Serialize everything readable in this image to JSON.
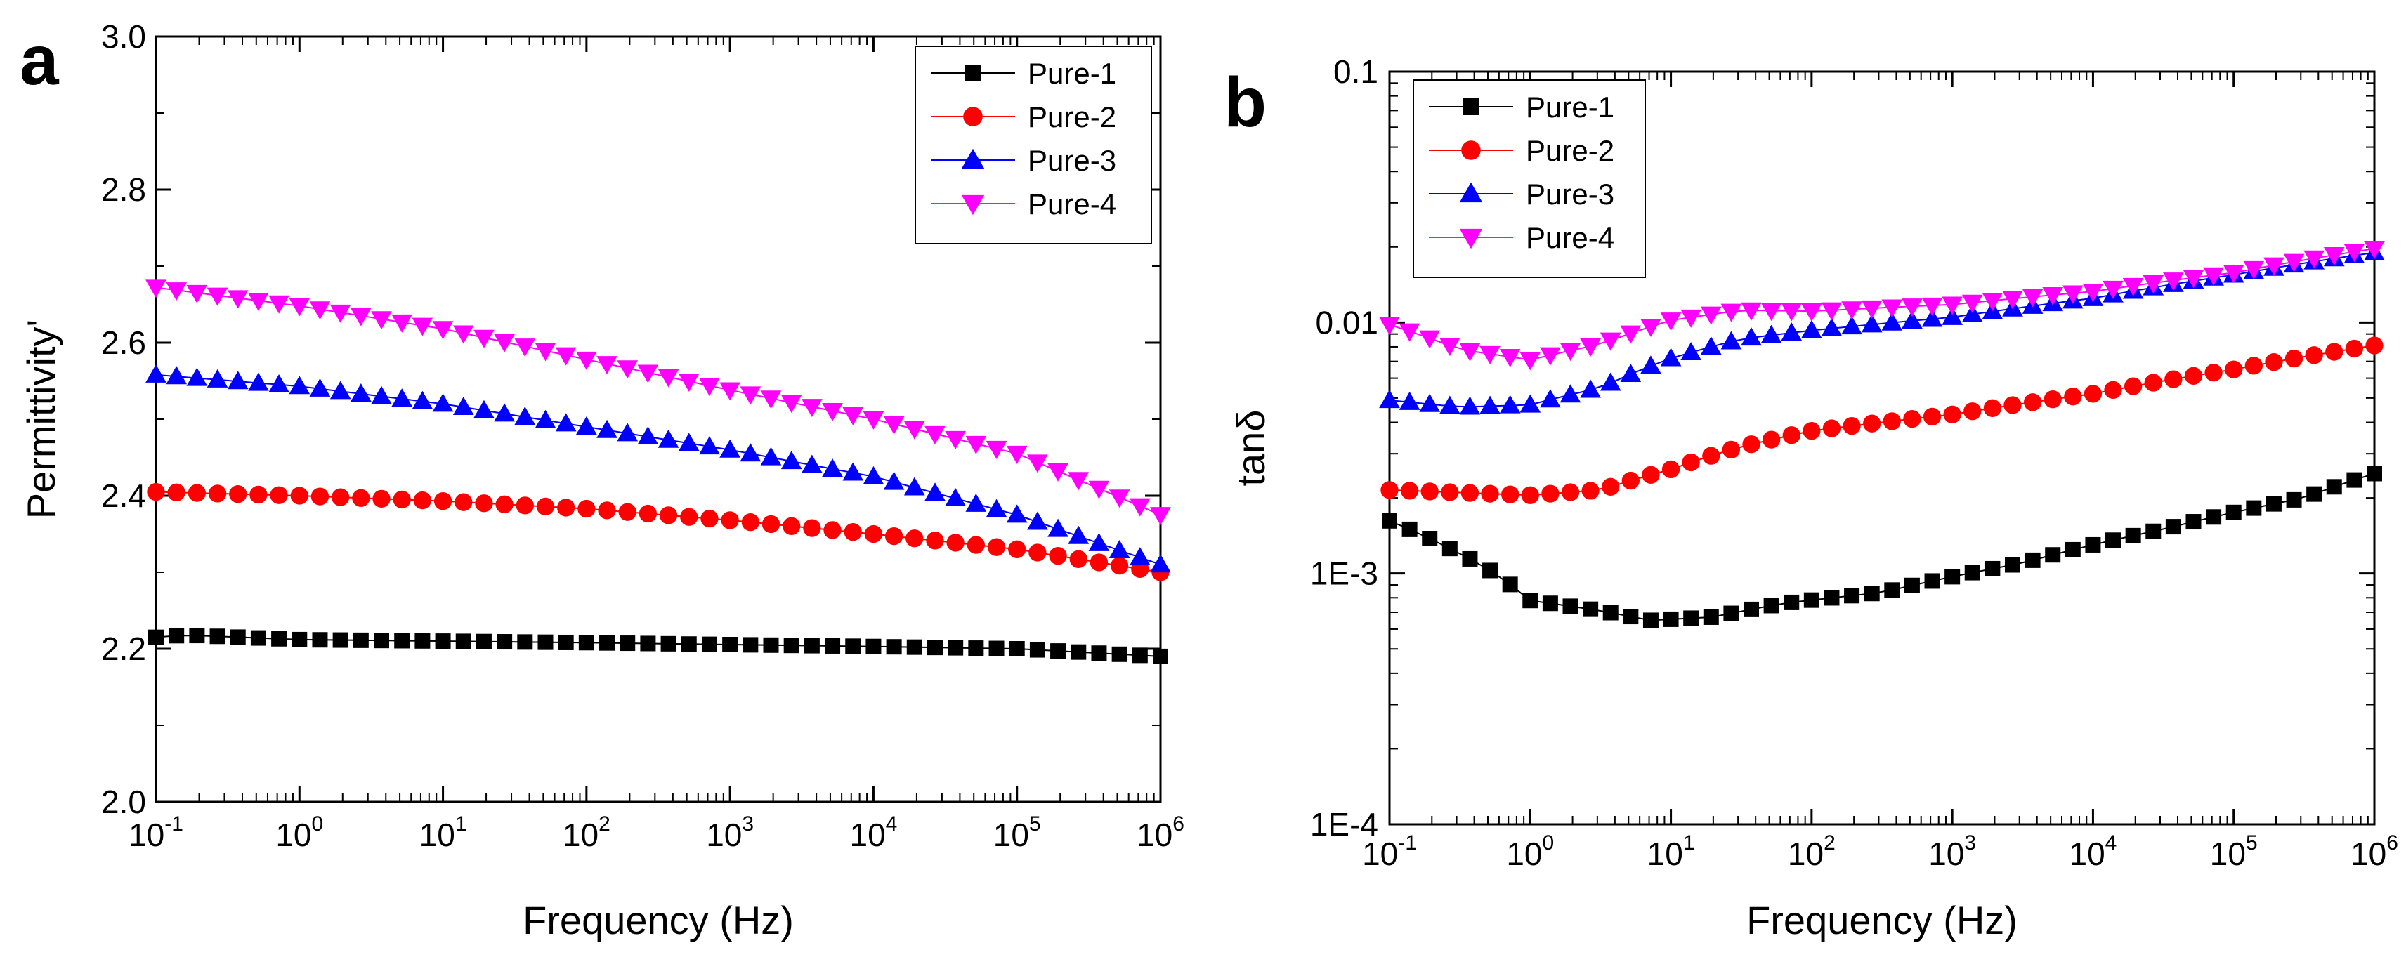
{
  "figure": {
    "panels": [
      {
        "letter": "a"
      },
      {
        "letter": "b"
      }
    ]
  },
  "chart_data": [
    {
      "type": "scatter",
      "panel": "a",
      "title": "",
      "xlabel": "Frequency (Hz)",
      "ylabel": "Permittivity'",
      "xscale": "log",
      "yscale": "linear",
      "xlim": [
        0.1,
        1000000
      ],
      "ylim": [
        2.0,
        3.0
      ],
      "xticks": [
        {
          "base": "10",
          "exp": "-1"
        },
        {
          "base": "10",
          "exp": "0"
        },
        {
          "base": "10",
          "exp": "1"
        },
        {
          "base": "10",
          "exp": "2"
        },
        {
          "base": "10",
          "exp": "3"
        },
        {
          "base": "10",
          "exp": "4"
        },
        {
          "base": "10",
          "exp": "5"
        },
        {
          "base": "10",
          "exp": "6"
        }
      ],
      "yticks": [
        "2.0",
        "2.2",
        "2.4",
        "2.6",
        "2.8",
        "3.0"
      ],
      "legend_position": "top-right",
      "points_per_series": 50,
      "series": [
        {
          "name": "Pure-1",
          "color": "#000000",
          "marker": "square",
          "anchors": [
            [
              -1,
              2.215
            ],
            [
              -0.8,
              2.218
            ],
            [
              0,
              2.212
            ],
            [
              2,
              2.208
            ],
            [
              4,
              2.203
            ],
            [
              5,
              2.2
            ],
            [
              6,
              2.19
            ]
          ]
        },
        {
          "name": "Pure-2",
          "color": "#ff0000",
          "marker": "circle",
          "anchors": [
            [
              -1,
              2.405
            ],
            [
              0,
              2.4
            ],
            [
              1,
              2.393
            ],
            [
              2,
              2.383
            ],
            [
              3,
              2.368
            ],
            [
              4,
              2.35
            ],
            [
              5,
              2.33
            ],
            [
              6,
              2.3
            ]
          ]
        },
        {
          "name": "Pure-3",
          "color": "#0000ff",
          "marker": "triangle-up",
          "anchors": [
            [
              -1,
              2.558
            ],
            [
              0,
              2.543
            ],
            [
              1,
              2.52
            ],
            [
              2,
              2.49
            ],
            [
              3,
              2.46
            ],
            [
              4,
              2.425
            ],
            [
              5,
              2.375
            ],
            [
              6,
              2.31
            ]
          ]
        },
        {
          "name": "Pure-4",
          "color": "#ff00ff",
          "marker": "triangle-down",
          "anchors": [
            [
              -1,
              2.672
            ],
            [
              0,
              2.648
            ],
            [
              1,
              2.618
            ],
            [
              2,
              2.578
            ],
            [
              3,
              2.538
            ],
            [
              4,
              2.5
            ],
            [
              5,
              2.455
            ],
            [
              6,
              2.375
            ]
          ]
        }
      ]
    },
    {
      "type": "scatter",
      "panel": "b",
      "title": "",
      "xlabel": "Frequency (Hz)",
      "ylabel": "tanδ",
      "xscale": "log",
      "yscale": "log",
      "xlim": [
        0.1,
        1000000
      ],
      "ylim": [
        0.0001,
        0.1
      ],
      "xticks": [
        {
          "base": "10",
          "exp": "-1"
        },
        {
          "base": "10",
          "exp": "0"
        },
        {
          "base": "10",
          "exp": "1"
        },
        {
          "base": "10",
          "exp": "2"
        },
        {
          "base": "10",
          "exp": "3"
        },
        {
          "base": "10",
          "exp": "4"
        },
        {
          "base": "10",
          "exp": "5"
        },
        {
          "base": "10",
          "exp": "6"
        }
      ],
      "yticks": [
        "1E-4",
        "1E-3",
        "0.01",
        "0.1"
      ],
      "legend_position": "top-left",
      "points_per_series": 50,
      "series": [
        {
          "name": "Pure-1",
          "color": "#000000",
          "marker": "square",
          "anchors": [
            [
              -1,
              0.00162
            ],
            [
              -0.6,
              0.00128
            ],
            [
              -0.3,
              0.00104
            ],
            [
              0,
              0.00078
            ],
            [
              0.5,
              0.00071
            ],
            [
              0.85,
              0.00065
            ],
            [
              1.3,
              0.00067
            ],
            [
              1.8,
              0.00076
            ],
            [
              2.5,
              0.00084
            ],
            [
              3.5,
              0.0011
            ],
            [
              4.5,
              0.0015
            ],
            [
              5.5,
              0.002
            ],
            [
              6,
              0.0025
            ]
          ]
        },
        {
          "name": "Pure-2",
          "color": "#ff0000",
          "marker": "circle",
          "anchors": [
            [
              -1,
              0.00215
            ],
            [
              0,
              0.00205
            ],
            [
              0.5,
              0.00215
            ],
            [
              1,
              0.0026
            ],
            [
              1.5,
              0.0032
            ],
            [
              2,
              0.0037
            ],
            [
              3,
              0.0043
            ],
            [
              4,
              0.0052
            ],
            [
              5,
              0.0065
            ],
            [
              6,
              0.0081
            ]
          ]
        },
        {
          "name": "Pure-3",
          "color": "#0000ff",
          "marker": "triangle-up",
          "anchors": [
            [
              -1,
              0.0049
            ],
            [
              -0.5,
              0.0046
            ],
            [
              0,
              0.0047
            ],
            [
              0.5,
              0.0055
            ],
            [
              1,
              0.0072
            ],
            [
              1.5,
              0.0086
            ],
            [
              2,
              0.0093
            ],
            [
              3,
              0.0105
            ],
            [
              4,
              0.0125
            ],
            [
              5,
              0.0155
            ],
            [
              6,
              0.019
            ]
          ]
        },
        {
          "name": "Pure-4",
          "color": "#ff00ff",
          "marker": "triangle-down",
          "anchors": [
            [
              -1,
              0.0098
            ],
            [
              -0.5,
              0.0078
            ],
            [
              0,
              0.0071
            ],
            [
              0.5,
              0.0082
            ],
            [
              1,
              0.0102
            ],
            [
              1.5,
              0.0112
            ],
            [
              2,
              0.0111
            ],
            [
              3,
              0.0118
            ],
            [
              4,
              0.0133
            ],
            [
              5,
              0.0158
            ],
            [
              6,
              0.0197
            ]
          ]
        }
      ]
    }
  ]
}
